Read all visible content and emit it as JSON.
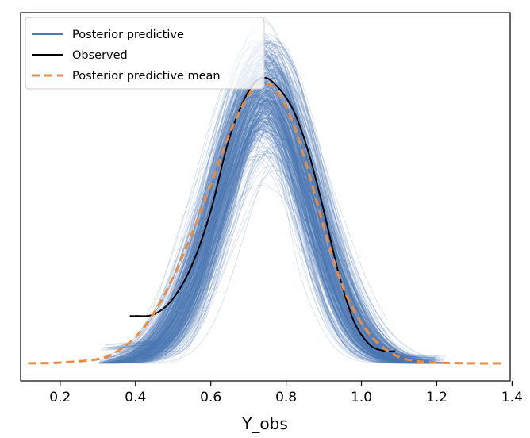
{
  "chart_data": {
    "type": "line",
    "title": "",
    "xlabel": "Y_obs",
    "ylabel": "",
    "xlim": [
      0.095,
      1.395
    ],
    "ylim": [
      -0.05,
      1.0
    ],
    "xticks": [
      0.2,
      0.4,
      0.6,
      0.8,
      1.0,
      1.2,
      1.4
    ],
    "xtick_labels": [
      "0.2",
      "0.4",
      "0.6",
      "0.8",
      "1.0",
      "1.2",
      "1.4"
    ],
    "yticks_visible": false,
    "grid": false,
    "legend": {
      "location": "upper-left",
      "entries": [
        {
          "label": "Posterior predictive",
          "color": "#4a7ab5",
          "style": "solid"
        },
        {
          "label": "Observed",
          "color": "#000000",
          "style": "solid"
        },
        {
          "label": "Posterior predictive mean",
          "color": "#ee8a3c",
          "style": "dashed"
        }
      ]
    },
    "series": [
      {
        "name": "Posterior predictive",
        "kind": "ensemble",
        "n_samples": 400,
        "color": "#4a7ab5",
        "peak_range": [
          0.56,
          0.92
        ],
        "center_range": [
          0.7,
          0.8
        ]
      },
      {
        "name": "Observed",
        "color": "#000000",
        "x": [
          0.385,
          0.4,
          0.45,
          0.5,
          0.55,
          0.6,
          0.65,
          0.7,
          0.74,
          0.78,
          0.82,
          0.86,
          0.9,
          0.94,
          0.98,
          1.02,
          1.06,
          1.09
        ],
        "y": [
          0.135,
          0.135,
          0.14,
          0.185,
          0.28,
          0.435,
          0.645,
          0.775,
          0.815,
          0.785,
          0.72,
          0.6,
          0.435,
          0.255,
          0.12,
          0.055,
          0.035,
          0.035
        ]
      },
      {
        "name": "Posterior predictive mean",
        "color": "#ee8a3c",
        "x": [
          0.115,
          0.2,
          0.3,
          0.35,
          0.4,
          0.45,
          0.5,
          0.55,
          0.6,
          0.65,
          0.7,
          0.74,
          0.78,
          0.82,
          0.86,
          0.9,
          0.95,
          1.0,
          1.05,
          1.1,
          1.15,
          1.2,
          1.3,
          1.37
        ],
        "y": [
          0.0,
          0.002,
          0.012,
          0.033,
          0.075,
          0.145,
          0.245,
          0.37,
          0.51,
          0.655,
          0.765,
          0.8,
          0.77,
          0.68,
          0.545,
          0.39,
          0.22,
          0.115,
          0.052,
          0.018,
          0.006,
          0.002,
          0.0,
          0.0
        ]
      }
    ]
  }
}
